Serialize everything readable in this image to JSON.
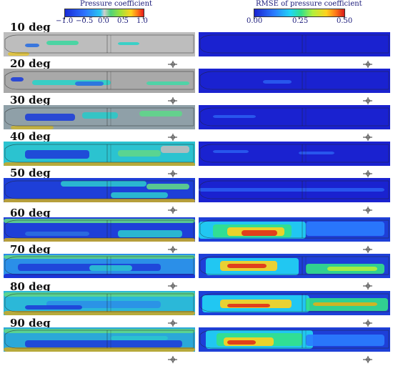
{
  "colorbars": {
    "pressure": {
      "title": "Pressure coefficient",
      "ticks": [
        "−1.0",
        "−0.5",
        "0.0",
        "0.5",
        "1.0"
      ]
    },
    "rmse": {
      "title": "RMSE of pressure coefficient",
      "ticks": [
        "0.00",
        "0.25",
        "0.50"
      ]
    }
  },
  "rows": [
    {
      "label": "10 deg"
    },
    {
      "label": "20 deg"
    },
    {
      "label": "30 deg"
    },
    {
      "label": "40 deg"
    },
    {
      "label": "50 deg"
    },
    {
      "label": "60 deg"
    },
    {
      "label": "70 deg"
    },
    {
      "label": "80 deg"
    },
    {
      "label": "90 deg"
    }
  ]
}
